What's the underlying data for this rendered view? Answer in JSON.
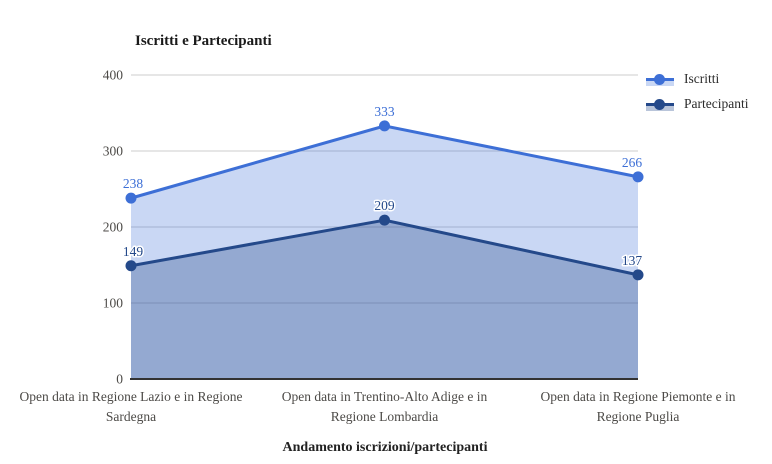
{
  "chart_data": {
    "type": "area",
    "title": "Iscritti e Partecipanti",
    "xlabel": "Andamento iscrizioni/partecipanti",
    "ylabel": "",
    "categories": [
      "Open data in Regione Lazio e in Regione Sardegna",
      "Open data in Trentino-Alto Adige e in Regione Lombardia",
      "Open data in Regione Piemonte e in Regione Puglia"
    ],
    "series": [
      {
        "name": "Iscritti",
        "values": [
          238,
          333,
          266
        ],
        "color": "#3d6fd6"
      },
      {
        "name": "Partecipanti",
        "values": [
          149,
          209,
          137
        ],
        "color": "#24498a"
      }
    ],
    "ylim": [
      0,
      400
    ],
    "yticks": [
      0,
      100,
      200,
      300,
      400
    ],
    "grid": true,
    "legend_position": "right-top",
    "point_labels_visible": true
  },
  "colors": {
    "gridline": "#cccccc",
    "baseline": "#333333",
    "tick_label": "#4c4a47",
    "category_label": "#4c4a47",
    "title": "#1a1a1a",
    "axis_title": "#222222",
    "legend_label": "#2b2b2b",
    "background": "#ffffff"
  }
}
